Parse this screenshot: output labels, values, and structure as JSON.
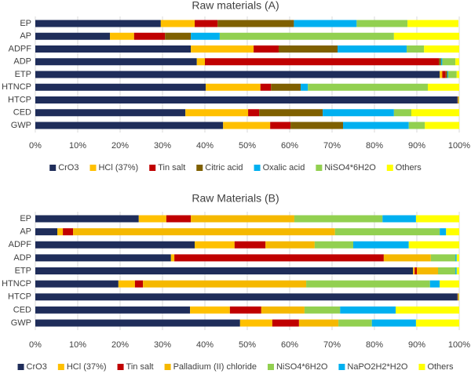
{
  "chart_data": [
    {
      "type": "bar",
      "orientation": "horizontal",
      "stacked": true,
      "grid": true,
      "title": "Raw materials (A)",
      "categories": [
        "EP",
        "AP",
        "ADPF",
        "ADP",
        "ETP",
        "HTNCP",
        "HTCP",
        "CED",
        "GWP"
      ],
      "xlim": [
        0,
        100
      ],
      "xticks": [
        {
          "value": 0,
          "label": "0%"
        },
        {
          "value": 10,
          "label": "10%"
        },
        {
          "value": 20,
          "label": "20%"
        },
        {
          "value": 30,
          "label": "30%"
        },
        {
          "value": 40,
          "label": "40%"
        },
        {
          "value": 50,
          "label": "50%"
        },
        {
          "value": 60,
          "label": "60%"
        },
        {
          "value": 70,
          "label": "70%"
        },
        {
          "value": 80,
          "label": "80%"
        },
        {
          "value": 90,
          "label": "90%"
        },
        {
          "value": 100,
          "label": "100%"
        }
      ],
      "series": [
        {
          "name": "CrO3",
          "color": "#1f2d5a",
          "values": [
            29.6,
            17.6,
            36.7,
            38.1,
            95.4,
            40.2,
            99.6,
            35.4,
            44.3
          ]
        },
        {
          "name": "HCl (37%)",
          "color": "#ffc000",
          "values": [
            8,
            5.7,
            14.8,
            1.9,
            0.6,
            12.9,
            0.1,
            14.8,
            11.1
          ]
        },
        {
          "name": "Tin salt",
          "color": "#c00000",
          "values": [
            5.4,
            7.3,
            5.9,
            55.2,
            0.8,
            2.5,
            0.1,
            2.6,
            4.8
          ]
        },
        {
          "name": "Citric acid",
          "color": "#7f6000",
          "values": [
            18,
            6.1,
            13.9,
            0.5,
            0.4,
            7,
            0,
            15,
            12.4
          ]
        },
        {
          "name": "Oxalic acid",
          "color": "#00b0f0",
          "values": [
            14.8,
            6.8,
            16.3,
            0.3,
            0.2,
            1.7,
            0,
            16.8,
            15.5
          ]
        },
        {
          "name": "NiSO4*6H2O",
          "color": "#92d050",
          "values": [
            12,
            41.1,
            4.1,
            3.1,
            2,
            28.3,
            0.1,
            4.1,
            3.8
          ]
        },
        {
          "name": "Others",
          "color": "#ffff00",
          "values": [
            12,
            15.4,
            8.3,
            0.9,
            0.6,
            7.4,
            0.1,
            11.3,
            8.1
          ]
        }
      ]
    },
    {
      "type": "bar",
      "orientation": "horizontal",
      "stacked": true,
      "grid": true,
      "title": "Raw Materials (B)",
      "categories": [
        "EP",
        "AP",
        "ADPF",
        "ADP",
        "ETP",
        "HTNCP",
        "HTCP",
        "CED",
        "GWP"
      ],
      "xlim": [
        0,
        100
      ],
      "xticks": [
        {
          "value": 0,
          "label": "0%"
        },
        {
          "value": 10,
          "label": "10%"
        },
        {
          "value": 20,
          "label": "20%"
        },
        {
          "value": 30,
          "label": "30%"
        },
        {
          "value": 40,
          "label": "40%"
        },
        {
          "value": 50,
          "label": "50%"
        },
        {
          "value": 60,
          "label": "60%"
        },
        {
          "value": 70,
          "label": "70%"
        },
        {
          "value": 80,
          "label": "80%"
        },
        {
          "value": 90,
          "label": "90%"
        },
        {
          "value": 100,
          "label": "100%"
        }
      ],
      "series": [
        {
          "name": "CrO3",
          "color": "#1f2d5a",
          "values": [
            24.4,
            5.2,
            37.6,
            32,
            89.1,
            19.6,
            99.6,
            36.5,
            48.3
          ]
        },
        {
          "name": "HCl (37%)",
          "color": "#ffc000",
          "values": [
            6.5,
            1.3,
            9.4,
            0.8,
            0.4,
            3.9,
            0.1,
            9.4,
            7.6
          ]
        },
        {
          "name": "Tin salt",
          "color": "#c00000",
          "values": [
            5.8,
            2.4,
            7.3,
            49.4,
            0.5,
            1.9,
            0.1,
            7.4,
            6.3
          ]
        },
        {
          "name": "Palladium (II) chloride",
          "color": "#f5b800",
          "values": [
            24.4,
            61.8,
            11.6,
            11.1,
            5,
            38.5,
            0,
            10.2,
            9.3
          ]
        },
        {
          "name": "NiSO4*6H2O",
          "color": "#92d050",
          "values": [
            20.8,
            24.7,
            9.1,
            5.8,
            4.1,
            29.2,
            0.1,
            8.4,
            7.9
          ]
        },
        {
          "name": "NaPO2H2*H2O",
          "color": "#00b0f0",
          "values": [
            7.9,
            1.5,
            13.1,
            0.3,
            0.3,
            2.3,
            0,
            13.1,
            10.4
          ]
        },
        {
          "name": "Others",
          "color": "#ffff00",
          "values": [
            10.2,
            3.1,
            11.9,
            0.6,
            0.6,
            4.6,
            0.1,
            15,
            10.2
          ]
        }
      ]
    }
  ]
}
